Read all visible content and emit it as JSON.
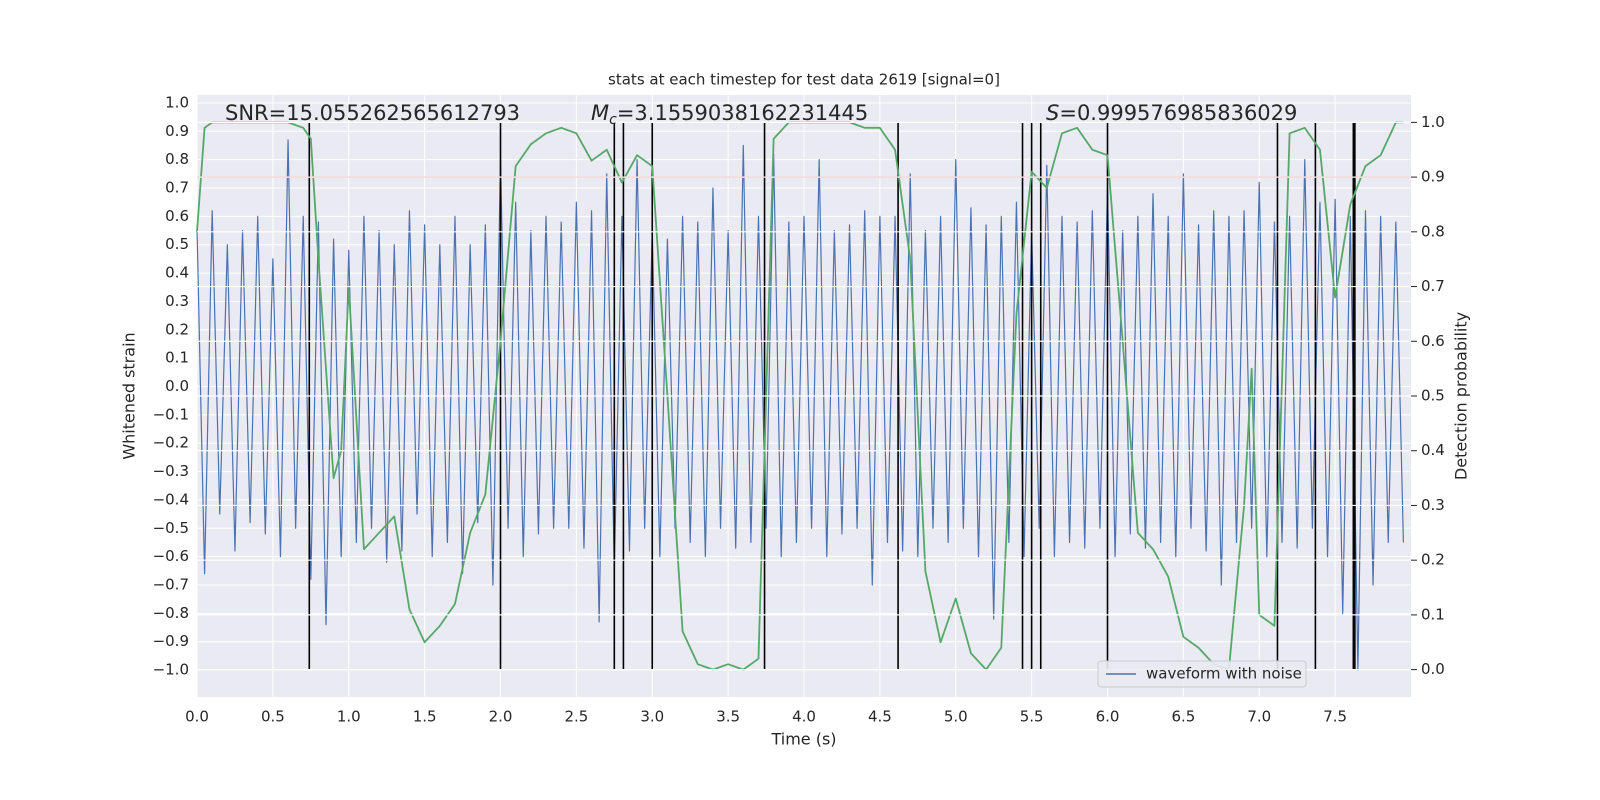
{
  "chart_data": {
    "type": "line",
    "title": "stats at each timestep for test data 2619 [signal=0]",
    "x_label": "Time (s)",
    "y_label": "Whitened strain",
    "y2_label": "Detection probability",
    "annotations": [
      {
        "text": "SNR=15.055262565612793"
      },
      {
        "symbol": "M",
        "subscript": "c",
        "text": "=3.1559038162231445"
      },
      {
        "symbol": "S",
        "text": "=0.999576985836029"
      }
    ],
    "xlim": [
      0,
      8
    ],
    "ylim": [
      -1.095,
      1.028
    ],
    "y2lim": [
      -0.05,
      1.05
    ],
    "grid": true,
    "legend": "lower right",
    "xticks": [
      {
        "value": 0,
        "label": "0.0"
      },
      {
        "value": 0.5,
        "label": "0.5"
      },
      {
        "value": 1,
        "label": "1.0"
      },
      {
        "value": 1.5,
        "label": "1.5"
      },
      {
        "value": 2,
        "label": "2.0"
      },
      {
        "value": 2.5,
        "label": "2.5"
      },
      {
        "value": 3,
        "label": "3.0"
      },
      {
        "value": 3.5,
        "label": "3.5"
      },
      {
        "value": 4,
        "label": "4.0"
      },
      {
        "value": 4.5,
        "label": "4.5"
      },
      {
        "value": 5,
        "label": "5.0"
      },
      {
        "value": 5.5,
        "label": "5.5"
      },
      {
        "value": 6,
        "label": "6.0"
      },
      {
        "value": 6.5,
        "label": "6.5"
      },
      {
        "value": 7,
        "label": "7.0"
      },
      {
        "value": 7.5,
        "label": "7.5"
      }
    ],
    "yticks": [
      {
        "value": -1,
        "label": "−1.0"
      },
      {
        "value": -0.9,
        "label": "−0.9"
      },
      {
        "value": -0.8,
        "label": "−0.8"
      },
      {
        "value": -0.7,
        "label": "−0.7"
      },
      {
        "value": -0.6,
        "label": "−0.6"
      },
      {
        "value": -0.5,
        "label": "−0.5"
      },
      {
        "value": -0.4,
        "label": "−0.4"
      },
      {
        "value": -0.3,
        "label": "−0.3"
      },
      {
        "value": -0.2,
        "label": "−0.2"
      },
      {
        "value": -0.1,
        "label": "−0.1"
      },
      {
        "value": 0,
        "label": "0.0"
      },
      {
        "value": 0.1,
        "label": "0.1"
      },
      {
        "value": 0.2,
        "label": "0.2"
      },
      {
        "value": 0.3,
        "label": "0.3"
      },
      {
        "value": 0.4,
        "label": "0.4"
      },
      {
        "value": 0.5,
        "label": "0.5"
      },
      {
        "value": 0.6,
        "label": "0.6"
      },
      {
        "value": 0.7,
        "label": "0.7"
      },
      {
        "value": 0.8,
        "label": "0.8"
      },
      {
        "value": 0.9,
        "label": "0.9"
      },
      {
        "value": 1,
        "label": "1.0"
      }
    ],
    "y2ticks": [
      {
        "value": 0,
        "label": "0.0"
      },
      {
        "value": 0.1,
        "label": "0.1"
      },
      {
        "value": 0.2,
        "label": "0.2"
      },
      {
        "value": 0.3,
        "label": "0.3"
      },
      {
        "value": 0.4,
        "label": "0.4"
      },
      {
        "value": 0.5,
        "label": "0.5"
      },
      {
        "value": 0.6,
        "label": "0.6"
      },
      {
        "value": 0.7,
        "label": "0.7"
      },
      {
        "value": 0.8,
        "label": "0.8"
      },
      {
        "value": 0.9,
        "label": "0.9"
      },
      {
        "value": 1,
        "label": "1.0"
      }
    ],
    "threshold": {
      "value": 0.9,
      "axis": "y2",
      "color": "#c44e52"
    },
    "events": {
      "x": [
        0.74,
        2.0,
        2.75,
        2.81,
        3.0,
        3.74,
        4.62,
        5.44,
        5.5,
        5.56,
        6.0,
        7.12,
        7.37,
        7.62,
        7.63
      ],
      "ymin": 0,
      "ymax": 1,
      "axis": "y2",
      "color": "#000000"
    },
    "series": [
      {
        "name": "waveform with noise",
        "color": "#4c72b0",
        "x": [
          0,
          0.05,
          0.1,
          0.15,
          0.2,
          0.25,
          0.3,
          0.35,
          0.4,
          0.45,
          0.5,
          0.55,
          0.6,
          0.65,
          0.7,
          0.75,
          0.8,
          0.85,
          0.9,
          0.95,
          1,
          1.05,
          1.1,
          1.15,
          1.2,
          1.25,
          1.3,
          1.35,
          1.4,
          1.45,
          1.5,
          1.55,
          1.6,
          1.65,
          1.7,
          1.75,
          1.8,
          1.85,
          1.9,
          1.95,
          2,
          2.05,
          2.1,
          2.15,
          2.2,
          2.25,
          2.3,
          2.35,
          2.4,
          2.45,
          2.5,
          2.55,
          2.6,
          2.65,
          2.7,
          2.75,
          2.8,
          2.85,
          2.9,
          2.95,
          3,
          3.05,
          3.1,
          3.15,
          3.2,
          3.25,
          3.3,
          3.35,
          3.4,
          3.45,
          3.5,
          3.55,
          3.6,
          3.65,
          3.7,
          3.75,
          3.8,
          3.85,
          3.9,
          3.95,
          4,
          4.05,
          4.1,
          4.15,
          4.2,
          4.25,
          4.3,
          4.35,
          4.4,
          4.45,
          4.5,
          4.55,
          4.6,
          4.65,
          4.7,
          4.75,
          4.8,
          4.85,
          4.9,
          4.95,
          5,
          5.05,
          5.1,
          5.15,
          5.2,
          5.25,
          5.3,
          5.35,
          5.4,
          5.45,
          5.5,
          5.55,
          5.6,
          5.65,
          5.7,
          5.75,
          5.8,
          5.85,
          5.9,
          5.95,
          6,
          6.05,
          6.1,
          6.15,
          6.2,
          6.25,
          6.3,
          6.35,
          6.4,
          6.45,
          6.5,
          6.55,
          6.6,
          6.65,
          6.7,
          6.75,
          6.8,
          6.85,
          6.9,
          6.95,
          7,
          7.05,
          7.1,
          7.15,
          7.2,
          7.25,
          7.3,
          7.35,
          7.4,
          7.45,
          7.5,
          7.55,
          7.6,
          7.65,
          7.7,
          7.75,
          7.8,
          7.85,
          7.9,
          7.95
        ],
        "values": [
          0.56,
          -0.66,
          0.62,
          -0.45,
          0.5,
          -0.58,
          0.55,
          -0.48,
          0.6,
          -0.52,
          0.45,
          -0.6,
          0.87,
          -0.5,
          0.6,
          -0.68,
          0.58,
          -0.84,
          0.52,
          -0.6,
          0.48,
          -0.55,
          0.6,
          -0.5,
          0.55,
          -0.62,
          0.5,
          -0.58,
          0.62,
          -0.45,
          0.57,
          -0.6,
          0.5,
          -0.55,
          0.6,
          -0.66,
          0.5,
          -0.48,
          0.57,
          -0.7,
          0.8,
          -0.5,
          0.65,
          -0.6,
          0.55,
          -0.52,
          0.6,
          -0.5,
          0.58,
          -0.5,
          0.65,
          -0.57,
          0.62,
          -0.83,
          0.75,
          -0.65,
          0.6,
          -0.58,
          0.8,
          -0.5,
          0.55,
          -0.6,
          0.52,
          -0.5,
          0.6,
          -0.55,
          0.58,
          -0.6,
          0.7,
          -0.5,
          0.55,
          -0.57,
          0.85,
          -0.55,
          0.6,
          -0.5,
          0.82,
          -0.6,
          0.58,
          -0.55,
          0.6,
          -0.5,
          0.8,
          -0.6,
          0.55,
          -0.52,
          0.57,
          -0.5,
          0.62,
          -0.7,
          0.6,
          -0.55,
          0.6,
          -0.58,
          0.75,
          -0.6,
          0.55,
          -0.5,
          0.6,
          -0.55,
          0.8,
          -0.5,
          0.63,
          -0.6,
          0.57,
          -0.82,
          0.6,
          -0.55,
          0.65,
          -0.6,
          0.55,
          -0.5,
          0.78,
          -0.6,
          0.6,
          -0.55,
          0.58,
          -0.57,
          0.62,
          -0.5,
          0.7,
          -0.6,
          0.55,
          -0.52,
          0.6,
          -0.57,
          0.68,
          -0.55,
          0.6,
          -0.6,
          0.75,
          -0.5,
          0.57,
          -0.58,
          0.62,
          -0.7,
          0.6,
          -0.55,
          0.62,
          -0.5,
          0.72,
          -0.6,
          0.58,
          -0.55,
          0.6,
          -0.57,
          0.8,
          -0.5,
          0.65,
          -0.6,
          0.66,
          -0.8,
          0.6,
          -1.0,
          0.62,
          -0.7,
          0.6,
          -0.55,
          0.58,
          -0.55
        ]
      },
      {
        "color": "#55a868",
        "axis": "y2",
        "x": [
          0,
          0.05,
          0.1,
          0.2,
          0.3,
          0.4,
          0.5,
          0.6,
          0.7,
          0.75,
          0.8,
          0.9,
          0.95,
          1,
          1.1,
          1.2,
          1.3,
          1.4,
          1.5,
          1.6,
          1.7,
          1.8,
          1.9,
          2,
          2.1,
          2.2,
          2.3,
          2.4,
          2.5,
          2.6,
          2.7,
          2.8,
          2.9,
          3,
          3.1,
          3.2,
          3.3,
          3.4,
          3.5,
          3.6,
          3.7,
          3.8,
          3.9,
          4,
          4.1,
          4.2,
          4.3,
          4.4,
          4.5,
          4.6,
          4.7,
          4.8,
          4.9,
          5,
          5.1,
          5.2,
          5.3,
          5.4,
          5.5,
          5.6,
          5.7,
          5.8,
          5.9,
          6,
          6.1,
          6.2,
          6.3,
          6.4,
          6.5,
          6.6,
          6.7,
          6.8,
          6.9,
          6.95,
          7,
          7.1,
          7.2,
          7.3,
          7.4,
          7.5,
          7.6,
          7.7,
          7.8,
          7.9,
          7.95
        ],
        "values": [
          0.8,
          0.99,
          1.0,
          1.0,
          1.0,
          1.0,
          1.0,
          1.0,
          0.99,
          0.97,
          0.75,
          0.35,
          0.4,
          0.7,
          0.22,
          0.25,
          0.28,
          0.11,
          0.05,
          0.08,
          0.12,
          0.25,
          0.32,
          0.6,
          0.92,
          0.96,
          0.98,
          0.99,
          0.98,
          0.93,
          0.95,
          0.89,
          0.94,
          0.92,
          0.5,
          0.07,
          0.01,
          0.0,
          0.01,
          0.0,
          0.02,
          0.97,
          1.0,
          1.0,
          1.0,
          1.0,
          1.0,
          0.99,
          0.99,
          0.95,
          0.75,
          0.18,
          0.05,
          0.13,
          0.03,
          0.0,
          0.04,
          0.65,
          0.91,
          0.88,
          0.98,
          0.99,
          0.95,
          0.94,
          0.6,
          0.25,
          0.22,
          0.17,
          0.06,
          0.04,
          0.01,
          0.0,
          0.3,
          0.55,
          0.1,
          0.08,
          0.98,
          0.99,
          0.95,
          0.68,
          0.85,
          0.92,
          0.94,
          1.0,
          1.0
        ]
      }
    ]
  }
}
